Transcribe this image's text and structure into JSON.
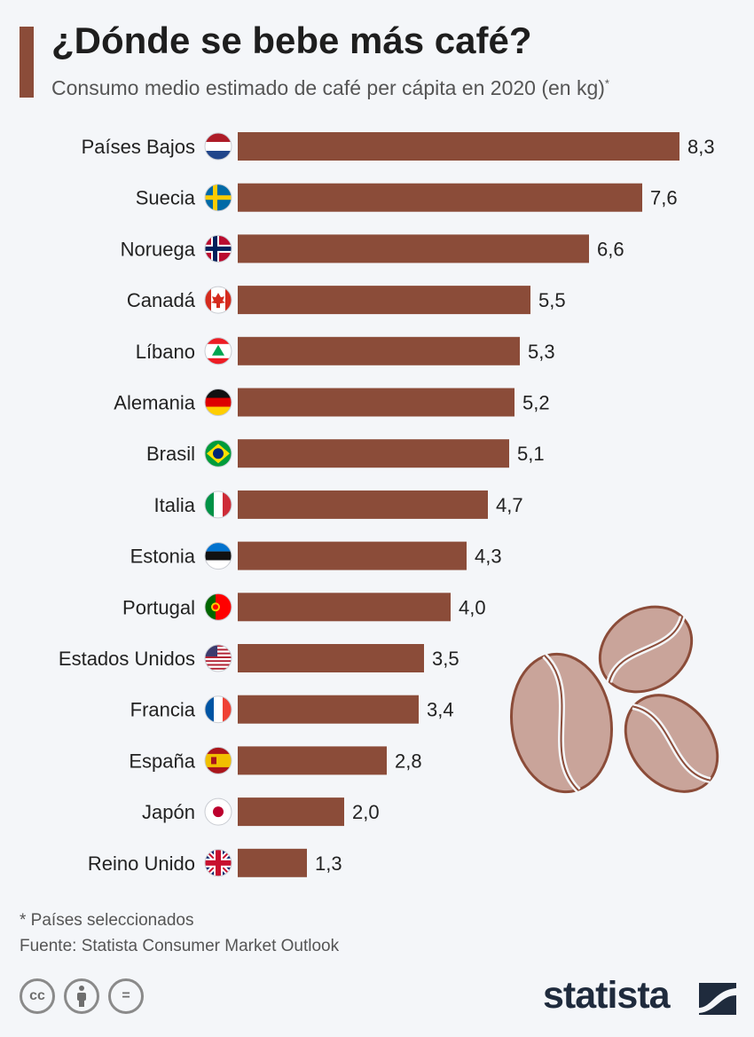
{
  "header": {
    "title": "¿Dónde se bebe más café?",
    "subtitle": "Consumo medio estimado de café per cápita en 2020 (en kg)",
    "subtitle_mark": "*"
  },
  "footer": {
    "footnote": "* Países seleccionados",
    "source": "Fuente: Statista Consumer Market Outlook",
    "license_icons": [
      "cc-icon",
      "attribution-icon",
      "no-derivatives-icon"
    ],
    "cc_label": "cc",
    "eq_label": "=",
    "brand": "statista"
  },
  "colors": {
    "bar": "#8b4c39",
    "accent": "#8b4c39",
    "background": "#f4f6f9",
    "bean_fill": "#c9a49a",
    "bean_stroke": "#8b4c39"
  },
  "decoration": [
    "coffee-bean-icon",
    "coffee-bean-icon",
    "coffee-bean-icon"
  ],
  "chart_data": {
    "type": "bar",
    "orientation": "horizontal",
    "title": "¿Dónde se bebe más café?",
    "subtitle": "Consumo medio estimado de café per cápita en 2020 (en kg)",
    "categories": [
      "Países Bajos",
      "Suecia",
      "Noruega",
      "Canadá",
      "Líbano",
      "Alemania",
      "Brasil",
      "Italia",
      "Estonia",
      "Portugal",
      "Estados Unidos",
      "Francia",
      "España",
      "Japón",
      "Reino Unido"
    ],
    "values": [
      8.3,
      7.6,
      6.6,
      5.5,
      5.3,
      5.2,
      5.1,
      4.7,
      4.3,
      4.0,
      3.5,
      3.4,
      2.8,
      2.0,
      1.3
    ],
    "value_labels": [
      "8,3",
      "7,6",
      "6,6",
      "5,5",
      "5,3",
      "5,2",
      "5,1",
      "4,7",
      "4,3",
      "4,0",
      "3,5",
      "3,4",
      "2,8",
      "2,0",
      "1,3"
    ],
    "flags": [
      "netherlands-flag-icon",
      "sweden-flag-icon",
      "norway-flag-icon",
      "canada-flag-icon",
      "lebanon-flag-icon",
      "germany-flag-icon",
      "brazil-flag-icon",
      "italy-flag-icon",
      "estonia-flag-icon",
      "portugal-flag-icon",
      "usa-flag-icon",
      "france-flag-icon",
      "spain-flag-icon",
      "japan-flag-icon",
      "uk-flag-icon"
    ],
    "xlim": [
      0,
      8.3
    ],
    "grid": false,
    "legend": "none",
    "unit": "kg"
  }
}
